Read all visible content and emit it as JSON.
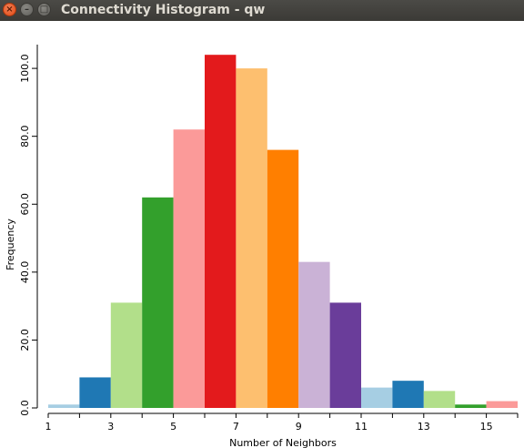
{
  "window": {
    "title": "Connectivity Histogram - qw",
    "close_glyph": "×",
    "minimize_glyph": "–",
    "maximize_glyph": "□"
  },
  "chart_data": {
    "type": "bar",
    "title": "",
    "xlabel": "Number of Neighbors",
    "ylabel": "Frequency",
    "bin_width": 1,
    "bins": [
      {
        "x": 1,
        "value": 1,
        "color": "#a6cee3"
      },
      {
        "x": 2,
        "value": 9,
        "color": "#1f78b4"
      },
      {
        "x": 3,
        "value": 31,
        "color": "#b2df8a"
      },
      {
        "x": 4,
        "value": 62,
        "color": "#33a02c"
      },
      {
        "x": 5,
        "value": 82,
        "color": "#fb9a99"
      },
      {
        "x": 6,
        "value": 104,
        "color": "#e31a1c"
      },
      {
        "x": 7,
        "value": 100,
        "color": "#fdbf6f"
      },
      {
        "x": 8,
        "value": 76,
        "color": "#ff7f00"
      },
      {
        "x": 9,
        "value": 43,
        "color": "#cab2d6"
      },
      {
        "x": 10,
        "value": 31,
        "color": "#6a3d9a"
      },
      {
        "x": 11,
        "value": 6,
        "color": "#a6cee3"
      },
      {
        "x": 12,
        "value": 8,
        "color": "#1f78b4"
      },
      {
        "x": 13,
        "value": 5,
        "color": "#b2df8a"
      },
      {
        "x": 14,
        "value": 1,
        "color": "#33a02c"
      },
      {
        "x": 15,
        "value": 2,
        "color": "#fb9a99"
      }
    ],
    "xlim": [
      1,
      16
    ],
    "ylim": [
      0,
      107
    ],
    "xticks": [
      1,
      3,
      5,
      7,
      9,
      11,
      13,
      15
    ],
    "xtick_labels": [
      "1",
      "3",
      "5",
      "7",
      "9",
      "11",
      "13",
      "15"
    ],
    "yticks": [
      0,
      20,
      40,
      60,
      80,
      100
    ],
    "ytick_labels": [
      "0.0",
      "20.0",
      "40.0",
      "60.0",
      "80.0",
      "100.0"
    ],
    "grid": false,
    "legend": "none"
  }
}
